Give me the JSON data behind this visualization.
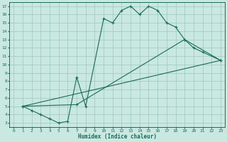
{
  "xlabel": "Humidex (Indice chaleur)",
  "xlim": [
    -0.5,
    23.5
  ],
  "ylim": [
    2.5,
    17.5
  ],
  "xticks": [
    0,
    1,
    2,
    3,
    4,
    5,
    6,
    7,
    8,
    9,
    10,
    11,
    12,
    13,
    14,
    15,
    16,
    17,
    18,
    19,
    20,
    21,
    22,
    23
  ],
  "yticks": [
    3,
    4,
    5,
    6,
    7,
    8,
    9,
    10,
    11,
    12,
    13,
    14,
    15,
    16,
    17
  ],
  "bg_color": "#c8e8e0",
  "grid_color": "#9cc8c0",
  "line_color": "#1a6b5a",
  "line1_x": [
    1,
    2,
    3,
    4,
    5,
    6,
    7,
    8,
    10,
    11,
    12,
    13,
    14,
    15,
    16,
    17,
    18,
    19,
    20,
    21,
    23
  ],
  "line1_y": [
    5,
    4.5,
    4,
    3.5,
    3,
    3.2,
    8.5,
    5,
    15.5,
    15,
    16.5,
    17,
    16,
    17,
    16.5,
    15,
    14.5,
    13,
    12,
    11.5,
    10.5
  ],
  "line2_x": [
    1,
    23
  ],
  "line2_y": [
    5,
    10.5
  ],
  "line3_x": [
    1,
    7,
    19,
    23
  ],
  "line3_y": [
    5,
    5.2,
    13,
    10.5
  ]
}
